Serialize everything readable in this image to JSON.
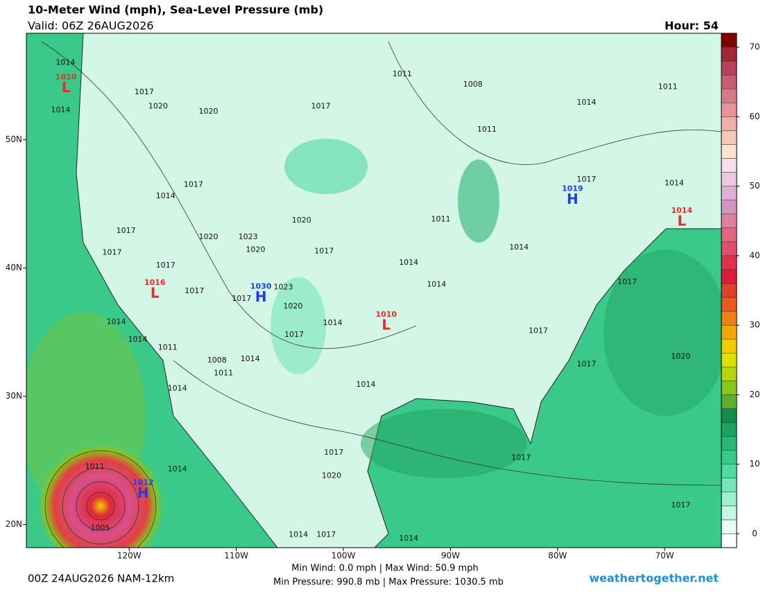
{
  "header": {
    "title": "10-Meter Wind (mph), Sea-Level Pressure (mb)",
    "valid": "Valid: 06Z 26AUG2026",
    "hour": "Hour: 54"
  },
  "map": {
    "lonlim": [
      -129.6,
      -64.7
    ],
    "latlim": [
      18.2,
      58.3
    ],
    "lon_ticks": [
      {
        "value": -120,
        "label": "120W"
      },
      {
        "value": -110,
        "label": "110W"
      },
      {
        "value": -100,
        "label": "100W"
      },
      {
        "value": -90,
        "label": "90W"
      },
      {
        "value": -80,
        "label": "80W"
      },
      {
        "value": -70,
        "label": "70W"
      }
    ],
    "lat_ticks": [
      {
        "value": 50,
        "label": "50N"
      },
      {
        "value": 40,
        "label": "40N"
      },
      {
        "value": 30,
        "label": "30N"
      },
      {
        "value": 20,
        "label": "20N"
      }
    ],
    "centers": [
      {
        "kind": "L",
        "pressure": "1010",
        "lat": 54.1,
        "lon": -125.9,
        "color": "#e0302a"
      },
      {
        "kind": "L",
        "pressure": "1016",
        "lat": 38.1,
        "lon": -117.6,
        "color": "#e0302a"
      },
      {
        "kind": "H",
        "pressure": "1030",
        "lat": 37.8,
        "lon": -107.7,
        "color": "#1f3fe0"
      },
      {
        "kind": "L",
        "pressure": "1010",
        "lat": 35.6,
        "lon": -96.0,
        "color": "#e0302a"
      },
      {
        "kind": "H",
        "pressure": "1019",
        "lat": 45.4,
        "lon": -78.6,
        "color": "#1f3fe0"
      },
      {
        "kind": "L",
        "pressure": "1014",
        "lat": 43.7,
        "lon": -68.4,
        "color": "#e0302a"
      },
      {
        "kind": "H",
        "pressure": "1012",
        "lat": 22.5,
        "lon": -118.7,
        "color": "#1f3fe0"
      }
    ],
    "isobar_labels": [
      {
        "text": "1014",
        "lat": 56.0,
        "lon": -125.95
      },
      {
        "text": "1017",
        "lat": 53.7,
        "lon": -118.6
      },
      {
        "text": "1020",
        "lat": 52.6,
        "lon": -117.3
      },
      {
        "text": "1014",
        "lat": 52.3,
        "lon": -126.4
      },
      {
        "text": "1020",
        "lat": 52.2,
        "lon": -112.6
      },
      {
        "text": "1017",
        "lat": 52.6,
        "lon": -102.1
      },
      {
        "text": "1011",
        "lat": 55.1,
        "lon": -94.5
      },
      {
        "text": "1008",
        "lat": 54.3,
        "lon": -87.9
      },
      {
        "text": "1011",
        "lat": 50.8,
        "lon": -86.6
      },
      {
        "text": "1011",
        "lat": 54.1,
        "lon": -69.7
      },
      {
        "text": "1014",
        "lat": 52.9,
        "lon": -77.3
      },
      {
        "text": "1017",
        "lat": 46.5,
        "lon": -114.0
      },
      {
        "text": "1014",
        "lat": 45.6,
        "lon": -116.6
      },
      {
        "text": "1017",
        "lat": 46.9,
        "lon": -77.3
      },
      {
        "text": "1014",
        "lat": 46.6,
        "lon": -69.1
      },
      {
        "text": "1017",
        "lat": 42.9,
        "lon": -120.3
      },
      {
        "text": "1020",
        "lat": 42.4,
        "lon": -112.6
      },
      {
        "text": "1023",
        "lat": 42.4,
        "lon": -108.9
      },
      {
        "text": "1020",
        "lat": 41.4,
        "lon": -108.2
      },
      {
        "text": "1020",
        "lat": 43.7,
        "lon": -103.9
      },
      {
        "text": "1017",
        "lat": 41.3,
        "lon": -101.8
      },
      {
        "text": "1011",
        "lat": 43.8,
        "lon": -90.9
      },
      {
        "text": "1014",
        "lat": 41.6,
        "lon": -83.6
      },
      {
        "text": "1017",
        "lat": 41.2,
        "lon": -121.6
      },
      {
        "text": "1017",
        "lat": 40.2,
        "lon": -116.6
      },
      {
        "text": "1014",
        "lat": 40.4,
        "lon": -93.9
      },
      {
        "text": "1014",
        "lat": 38.7,
        "lon": -91.3
      },
      {
        "text": "1017",
        "lat": 38.9,
        "lon": -73.5
      },
      {
        "text": "1023",
        "lat": 38.5,
        "lon": -105.6
      },
      {
        "text": "1017",
        "lat": 38.2,
        "lon": -113.9
      },
      {
        "text": "1017",
        "lat": 37.6,
        "lon": -109.5
      },
      {
        "text": "1020",
        "lat": 37.0,
        "lon": -104.7
      },
      {
        "text": "1014",
        "lat": 35.7,
        "lon": -101.0
      },
      {
        "text": "1017",
        "lat": 34.8,
        "lon": -104.6
      },
      {
        "text": "1017",
        "lat": 35.1,
        "lon": -81.8
      },
      {
        "text": "1014",
        "lat": 35.8,
        "lon": -121.2
      },
      {
        "text": "1014",
        "lat": 34.4,
        "lon": -119.2
      },
      {
        "text": "1011",
        "lat": 33.8,
        "lon": -116.4
      },
      {
        "text": "1008",
        "lat": 32.8,
        "lon": -111.8
      },
      {
        "text": "1014",
        "lat": 32.9,
        "lon": -108.7
      },
      {
        "text": "1011",
        "lat": 31.8,
        "lon": -111.2
      },
      {
        "text": "1017",
        "lat": 32.5,
        "lon": -77.3
      },
      {
        "text": "1020",
        "lat": 33.1,
        "lon": -68.5
      },
      {
        "text": "1014",
        "lat": 30.9,
        "lon": -97.9
      },
      {
        "text": "1014",
        "lat": 30.6,
        "lon": -115.5
      },
      {
        "text": "1017",
        "lat": 25.6,
        "lon": -100.9
      },
      {
        "text": "1020",
        "lat": 23.8,
        "lon": -101.1
      },
      {
        "text": "1014",
        "lat": 24.3,
        "lon": -115.5
      },
      {
        "text": "1017",
        "lat": 25.2,
        "lon": -83.4
      },
      {
        "text": "1011",
        "lat": 24.5,
        "lon": -123.2
      },
      {
        "text": "1005",
        "lat": 19.7,
        "lon": -122.7
      },
      {
        "text": "1017",
        "lat": 21.5,
        "lon": -68.5
      },
      {
        "text": "1014",
        "lat": 19.2,
        "lon": -104.2
      },
      {
        "text": "1017",
        "lat": 19.2,
        "lon": -101.6
      },
      {
        "text": "1014",
        "lat": 18.9,
        "lon": -93.9
      }
    ]
  },
  "colorbar": {
    "lim": [
      -2,
      72
    ],
    "ticks": [
      0,
      10,
      20,
      30,
      40,
      50,
      60,
      70
    ],
    "bounds": [
      -2,
      0,
      2,
      4,
      6,
      8,
      10,
      12,
      14,
      16,
      18,
      20,
      22,
      24,
      26,
      28,
      30,
      32,
      34,
      36,
      38,
      40,
      42,
      44,
      46,
      48,
      50,
      52,
      54,
      56,
      58,
      60,
      62,
      64,
      66,
      68,
      70,
      72
    ],
    "colors": [
      "#ffffff",
      "#e8fbf4",
      "#c4f6e3",
      "#9cefd0",
      "#74e6bb",
      "#50d9a2",
      "#3bc98a",
      "#2cb676",
      "#1fa160",
      "#168c4c",
      "#5fae2e",
      "#8cc41c",
      "#b8d410",
      "#dde000",
      "#f0cc00",
      "#f0a800",
      "#ef8018",
      "#e85a20",
      "#e0402c",
      "#dc1c38",
      "#e0304e",
      "#e24c68",
      "#e26680",
      "#de7ea0",
      "#d494c0",
      "#e0b0d4",
      "#ecc8e0",
      "#f6e0e8",
      "#fce4d0",
      "#f6c8b8",
      "#f0b0a8",
      "#e89498",
      "#d87888",
      "#c85c70",
      "#b8405a",
      "#a02838",
      "#800000"
    ]
  },
  "footer": {
    "model": "00Z 24AUG2026 NAM-12km",
    "wind": "Min Wind:   0.0 mph | Max Wind:  50.9 mph",
    "pressure": "Min Pressure: 990.8 mb | Max Pressure: 1030.5 mb",
    "site": "weathertogether.net"
  }
}
